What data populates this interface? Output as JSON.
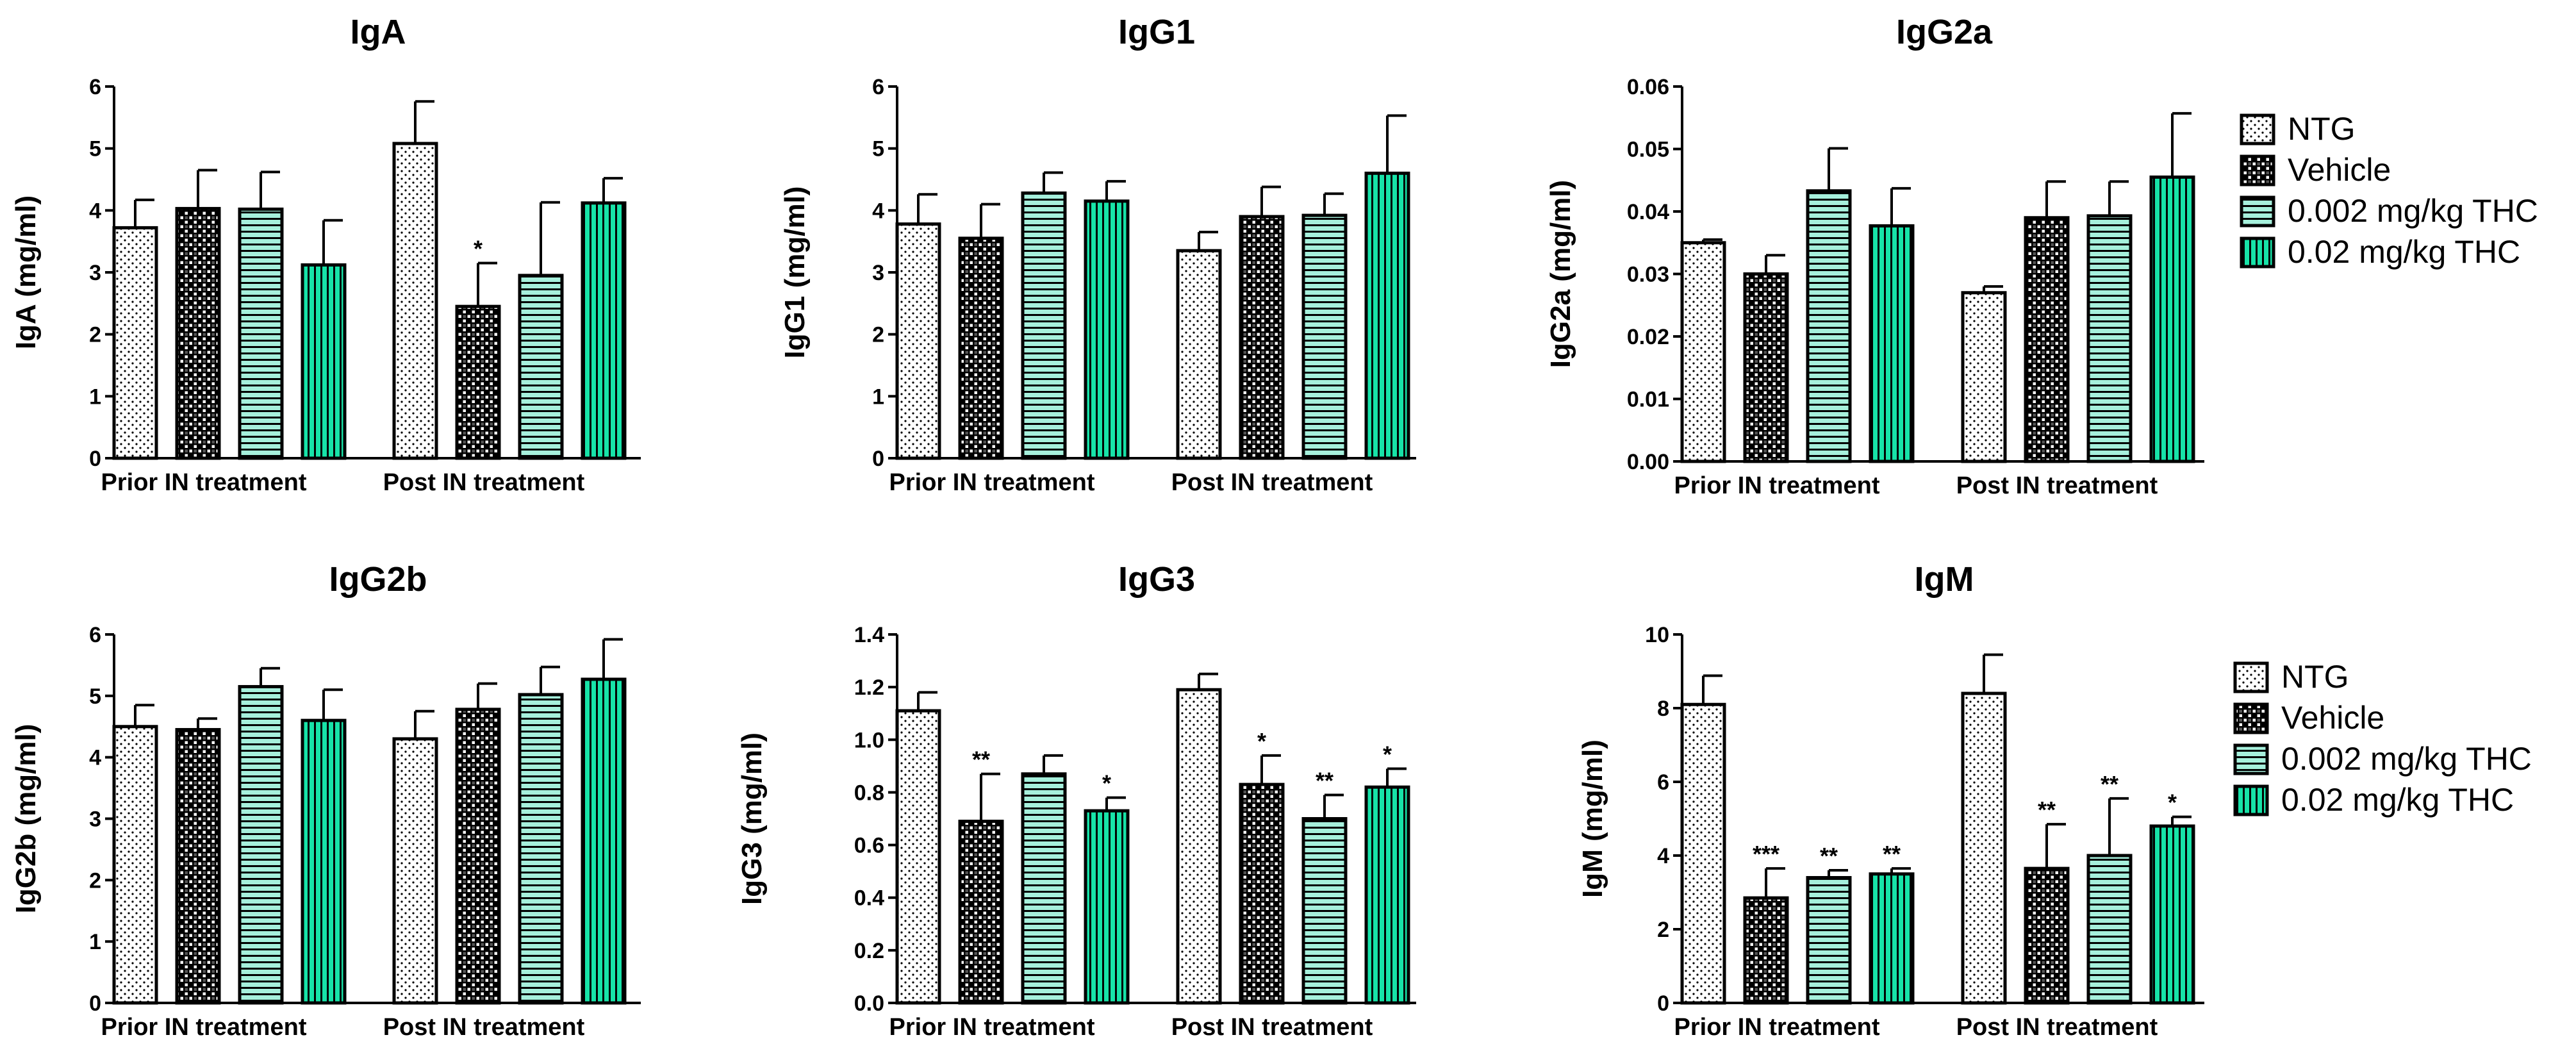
{
  "legend": [
    {
      "name": "NTG",
      "pattern": "dots",
      "fill": "#ffffff"
    },
    {
      "name": "Vehicle",
      "pattern": "checker",
      "fill": "#ffffff"
    },
    {
      "name": "0.002 mg/kg THC",
      "pattern": "hlines",
      "fill": "#a6f0dc"
    },
    {
      "name": "0.02 mg/kg THC",
      "pattern": "vlines",
      "fill": "#17e3a8"
    }
  ],
  "colors": {
    "axis": "#000000",
    "bar_outline": "#000000",
    "thc_low": "#a6f0dc",
    "thc_high": "#17e3a8"
  },
  "chart_data": [
    {
      "type": "bar",
      "title": "IgA",
      "ylabel": "IgA (mg/ml)",
      "categories": [
        "Prior IN treatment",
        "Post IN treatment"
      ],
      "ylim": [
        0,
        6
      ],
      "yticks": [
        0,
        1,
        2,
        3,
        4,
        5,
        6
      ],
      "tick_decimals": 0,
      "series": [
        {
          "name": "NTG",
          "values": [
            3.72,
            5.08
          ],
          "errors": [
            0.45,
            0.68
          ],
          "sig": [
            "",
            ""
          ]
        },
        {
          "name": "Vehicle",
          "values": [
            4.03,
            2.45
          ],
          "errors": [
            0.62,
            0.7
          ],
          "sig": [
            "",
            "*"
          ]
        },
        {
          "name": "0.002 mg/kg THC",
          "values": [
            4.02,
            2.95
          ],
          "errors": [
            0.6,
            1.18
          ],
          "sig": [
            "",
            ""
          ]
        },
        {
          "name": "0.02 mg/kg THC",
          "values": [
            3.12,
            4.12
          ],
          "errors": [
            0.72,
            0.4
          ],
          "sig": [
            "",
            ""
          ]
        }
      ]
    },
    {
      "type": "bar",
      "title": "IgG1",
      "ylabel": "IgG1 (mg/ml)",
      "categories": [
        "Prior IN treatment",
        "Post IN treatment"
      ],
      "ylim": [
        0,
        6
      ],
      "yticks": [
        0,
        1,
        2,
        3,
        4,
        5,
        6
      ],
      "tick_decimals": 0,
      "series": [
        {
          "name": "NTG",
          "values": [
            3.78,
            3.35
          ],
          "errors": [
            0.48,
            0.3
          ],
          "sig": [
            "",
            ""
          ]
        },
        {
          "name": "Vehicle",
          "values": [
            3.55,
            3.9
          ],
          "errors": [
            0.55,
            0.48
          ],
          "sig": [
            "",
            ""
          ]
        },
        {
          "name": "0.002 mg/kg THC",
          "values": [
            4.28,
            3.92
          ],
          "errors": [
            0.33,
            0.35
          ],
          "sig": [
            "",
            ""
          ]
        },
        {
          "name": "0.02 mg/kg THC",
          "values": [
            4.15,
            4.6
          ],
          "errors": [
            0.32,
            0.93
          ],
          "sig": [
            "",
            ""
          ]
        }
      ]
    },
    {
      "type": "bar",
      "title": "IgG2a",
      "ylabel": "IgG2a (mg/ml)",
      "categories": [
        "Prior IN treatment",
        "Post IN treatment"
      ],
      "ylim": [
        0,
        0.06
      ],
      "yticks": [
        0,
        0.01,
        0.02,
        0.03,
        0.04,
        0.05,
        0.06
      ],
      "tick_decimals": 2,
      "series": [
        {
          "name": "NTG",
          "values": [
            0.035,
            0.027
          ],
          "errors": [
            0.0005,
            0.001
          ],
          "sig": [
            "",
            ""
          ]
        },
        {
          "name": "Vehicle",
          "values": [
            0.03,
            0.039
          ],
          "errors": [
            0.003,
            0.0058
          ],
          "sig": [
            "",
            ""
          ]
        },
        {
          "name": "0.002 mg/kg THC",
          "values": [
            0.0433,
            0.0393
          ],
          "errors": [
            0.0068,
            0.0055
          ],
          "sig": [
            "",
            ""
          ]
        },
        {
          "name": "0.02 mg/kg THC",
          "values": [
            0.0377,
            0.0455
          ],
          "errors": [
            0.006,
            0.0102
          ],
          "sig": [
            "",
            ""
          ]
        }
      ]
    },
    {
      "type": "bar",
      "title": "IgG2b",
      "ylabel": "IgG2b (mg/ml)",
      "categories": [
        "Prior IN treatment",
        "Post IN treatment"
      ],
      "ylim": [
        0,
        6
      ],
      "yticks": [
        0,
        1,
        2,
        3,
        4,
        5,
        6
      ],
      "tick_decimals": 0,
      "series": [
        {
          "name": "NTG",
          "values": [
            4.5,
            4.3
          ],
          "errors": [
            0.35,
            0.45
          ],
          "sig": [
            "",
            ""
          ]
        },
        {
          "name": "Vehicle",
          "values": [
            4.45,
            4.78
          ],
          "errors": [
            0.18,
            0.42
          ],
          "sig": [
            "",
            ""
          ]
        },
        {
          "name": "0.002 mg/kg THC",
          "values": [
            5.15,
            5.02
          ],
          "errors": [
            0.3,
            0.45
          ],
          "sig": [
            "",
            ""
          ]
        },
        {
          "name": "0.02 mg/kg THC",
          "values": [
            4.6,
            5.27
          ],
          "errors": [
            0.5,
            0.65
          ],
          "sig": [
            "",
            ""
          ]
        }
      ]
    },
    {
      "type": "bar",
      "title": "IgG3",
      "ylabel": "IgG3 (mg/ml)",
      "categories": [
        "Prior IN treatment",
        "Post IN treatment"
      ],
      "ylim": [
        0,
        1.4
      ],
      "yticks": [
        0,
        0.2,
        0.4,
        0.6,
        0.8,
        1.0,
        1.2,
        1.4
      ],
      "tick_decimals": 1,
      "series": [
        {
          "name": "NTG",
          "values": [
            1.11,
            1.19
          ],
          "errors": [
            0.07,
            0.06
          ],
          "sig": [
            "",
            ""
          ]
        },
        {
          "name": "Vehicle",
          "values": [
            0.69,
            0.83
          ],
          "errors": [
            0.18,
            0.11
          ],
          "sig": [
            "**",
            "*"
          ]
        },
        {
          "name": "0.002 mg/kg THC",
          "values": [
            0.87,
            0.7
          ],
          "errors": [
            0.07,
            0.09
          ],
          "sig": [
            "",
            "**"
          ]
        },
        {
          "name": "0.02 mg/kg THC",
          "values": [
            0.73,
            0.82
          ],
          "errors": [
            0.05,
            0.07
          ],
          "sig": [
            "*",
            "*"
          ]
        }
      ]
    },
    {
      "type": "bar",
      "title": "IgM",
      "ylabel": "IgM (mg/ml)",
      "categories": [
        "Prior IN treatment",
        "Post IN treatment"
      ],
      "ylim": [
        0,
        10
      ],
      "yticks": [
        0,
        2,
        4,
        6,
        8,
        10
      ],
      "tick_decimals": 0,
      "series": [
        {
          "name": "NTG",
          "values": [
            8.1,
            8.4
          ],
          "errors": [
            0.78,
            1.05
          ],
          "sig": [
            "",
            ""
          ]
        },
        {
          "name": "Vehicle",
          "values": [
            2.85,
            3.65
          ],
          "errors": [
            0.8,
            1.2
          ],
          "sig": [
            "***",
            "**"
          ]
        },
        {
          "name": "0.002 mg/kg THC",
          "values": [
            3.4,
            4.0
          ],
          "errors": [
            0.2,
            1.55
          ],
          "sig": [
            "**",
            "**"
          ]
        },
        {
          "name": "0.02 mg/kg THC",
          "values": [
            3.5,
            4.8
          ],
          "errors": [
            0.15,
            0.25
          ],
          "sig": [
            "**",
            "*"
          ]
        }
      ]
    }
  ]
}
